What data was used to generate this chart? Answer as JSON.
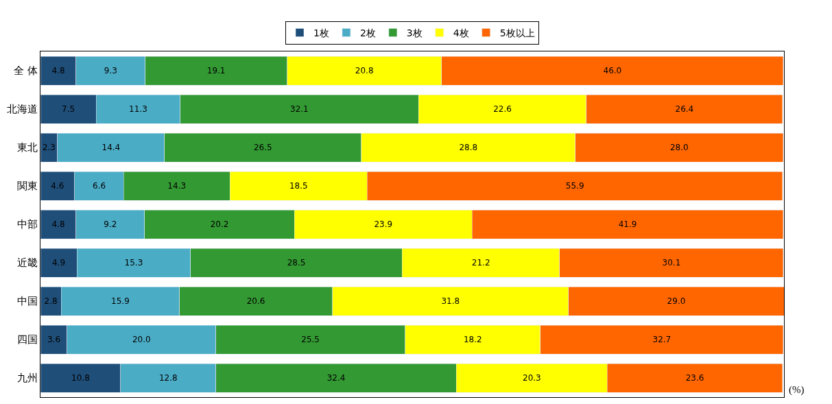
{
  "chart_data": {
    "type": "bar",
    "orientation": "horizontal",
    "stacked": true,
    "legend": "top",
    "categories": [
      "全 体",
      "北海道",
      "東北",
      "関東",
      "中部",
      "近畿",
      "中国",
      "四国",
      "九州"
    ],
    "series": [
      {
        "name": "1枚",
        "color": "#1f4e79",
        "values": [
          4.8,
          7.5,
          2.3,
          4.6,
          4.8,
          4.9,
          2.8,
          3.6,
          10.8
        ],
        "value_labels": [
          "4.8",
          "7.5",
          "2.3",
          "4.6",
          "4.8",
          "4.9",
          "2.8",
          "3.6",
          "10.8"
        ]
      },
      {
        "name": "2枚",
        "color": "#4bacc6",
        "values": [
          9.3,
          11.3,
          14.4,
          6.6,
          9.2,
          15.3,
          15.9,
          20,
          12.8
        ],
        "value_labels": [
          "9.3",
          "11.3",
          "14.4",
          "6.6",
          "9.2",
          "15.3",
          "15.9",
          "20.0",
          "12.8"
        ]
      },
      {
        "name": "3枚",
        "color": "#339933",
        "values": [
          19.1,
          32.1,
          26.5,
          14.3,
          20.2,
          28.5,
          20.6,
          25.5,
          32.4
        ],
        "value_labels": [
          "19.1",
          "32.1",
          "26.5",
          "14.3",
          "20.2",
          "28.5",
          "20.6",
          "25.5",
          "32.4"
        ]
      },
      {
        "name": "4枚",
        "color": "#ffff00",
        "values": [
          20.8,
          22.6,
          28.8,
          18.5,
          23.9,
          21.2,
          31.8,
          18.2,
          20.3
        ],
        "value_labels": [
          "20.8",
          "22.6",
          "28.8",
          "18.5",
          "23.9",
          "21.2",
          "31.8",
          "18.2",
          "20.3"
        ]
      },
      {
        "name": "5枚以上",
        "color": "#ff6600",
        "values": [
          46,
          26.4,
          28,
          55.9,
          41.9,
          30.1,
          29,
          32.7,
          23.6
        ],
        "value_labels": [
          "46.0",
          "26.4",
          "28.0",
          "55.9",
          "41.9",
          "30.1",
          "29.0",
          "32.7",
          "23.6"
        ]
      }
    ],
    "annotations": [
      "(%)"
    ]
  }
}
